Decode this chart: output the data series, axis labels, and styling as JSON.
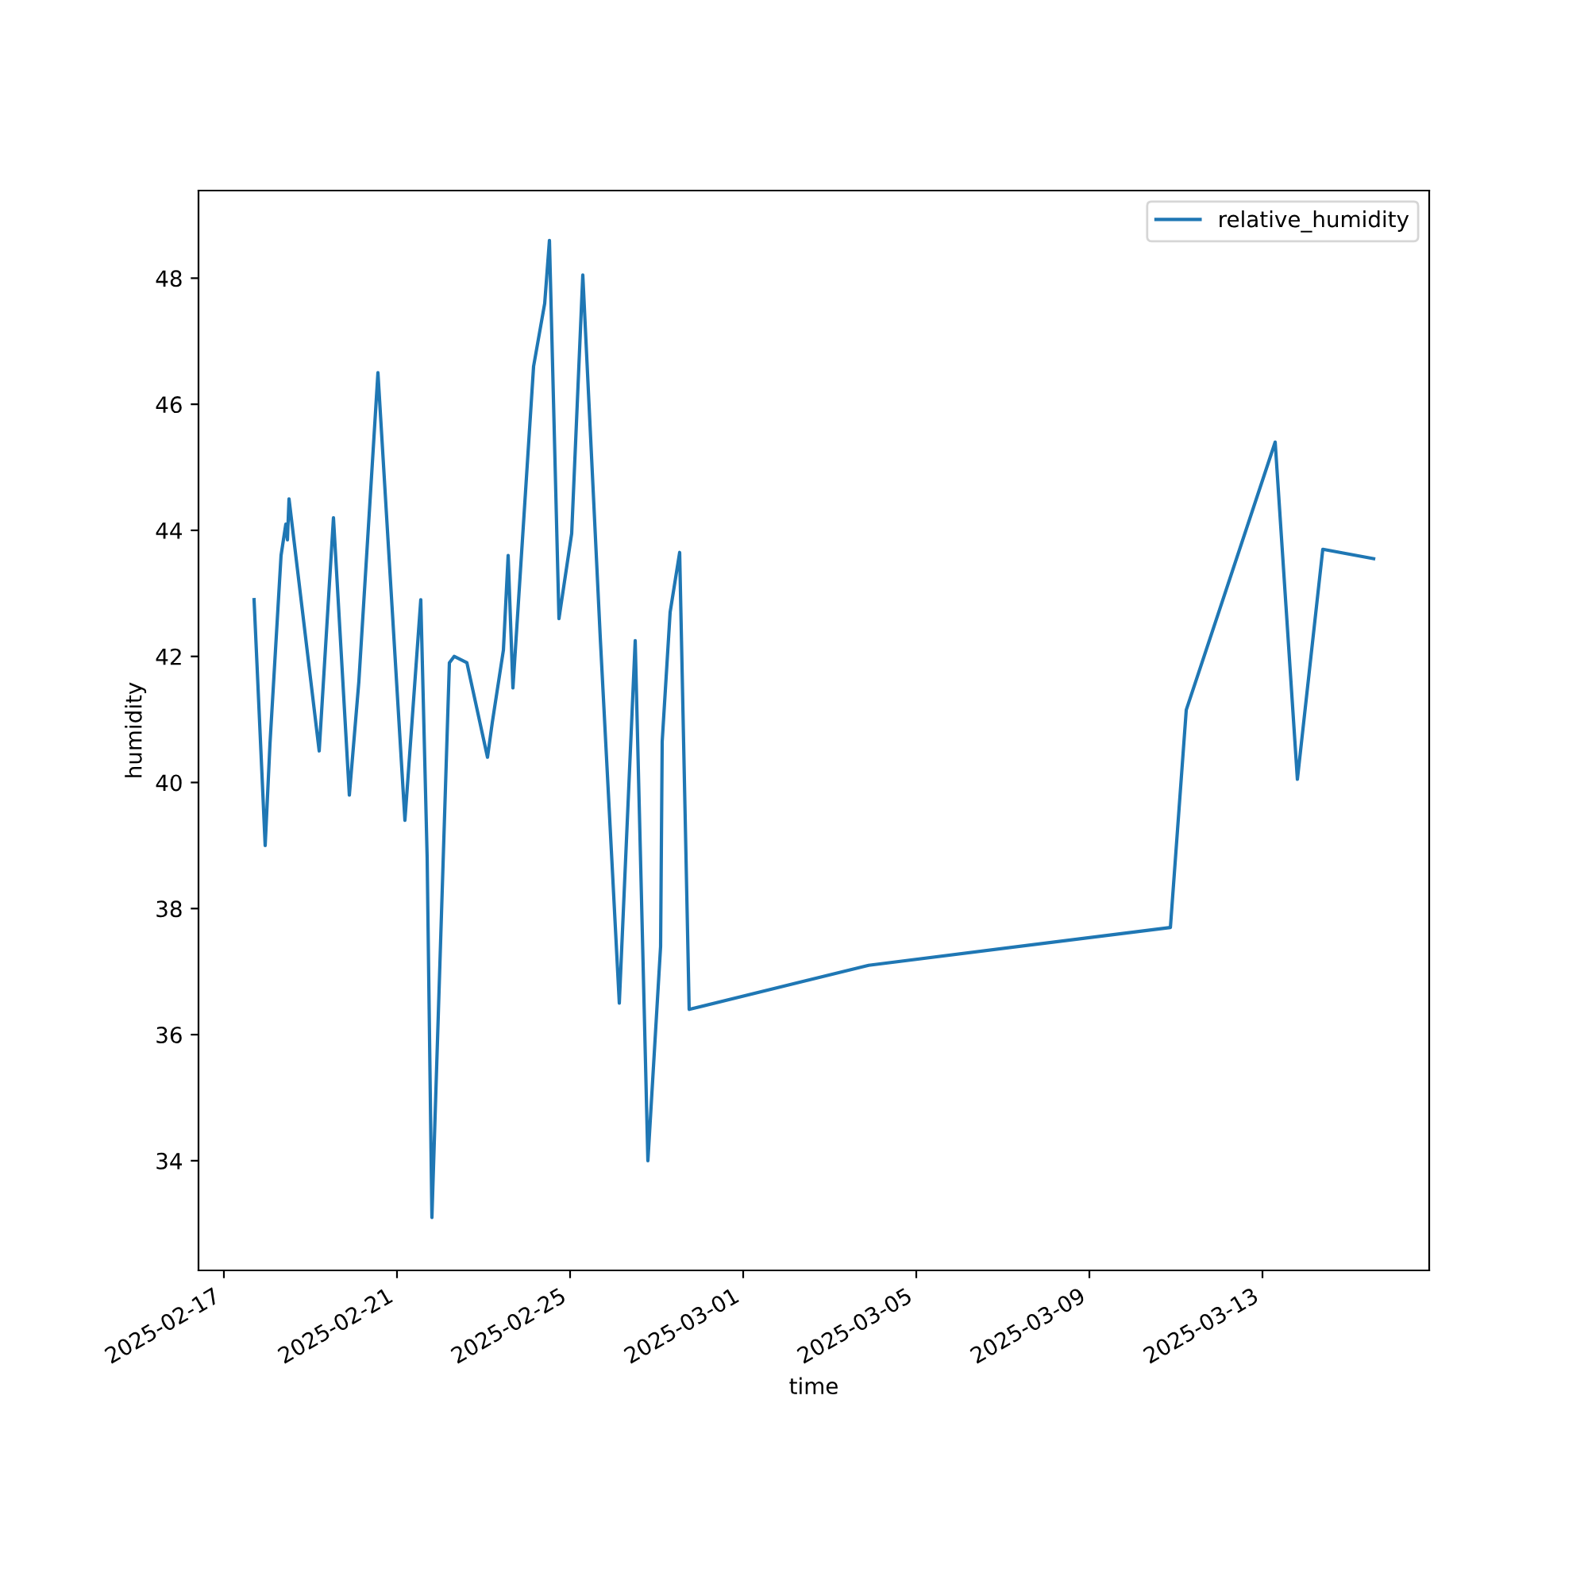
{
  "chart_data": {
    "type": "line",
    "xlabel": "time",
    "ylabel": "humidity",
    "legend": "top right",
    "grid": false,
    "xlim": [
      "2025-02-16T09:55",
      "2025-03-16T20:28"
    ],
    "ylim": [
      32.26,
      49.39
    ],
    "xticks": [
      "2025-02-17",
      "2025-02-21",
      "2025-02-25",
      "2025-03-01",
      "2025-03-05",
      "2025-03-09",
      "2025-03-13"
    ],
    "yticks": [
      34,
      36,
      38,
      40,
      42,
      44,
      46,
      48
    ],
    "series": [
      {
        "name": "relative_humidity",
        "color": "#1f77b4",
        "x": [
          "2025-02-17T16:44",
          "2025-02-17T22:54",
          "2025-02-18T01:32",
          "2025-02-18T07:42",
          "2025-02-18T10:21",
          "2025-02-18T11:14",
          "2025-02-18T12:07",
          "2025-02-19T04:51",
          "2025-02-19T12:46",
          "2025-02-19T21:35",
          "2025-02-20T02:51",
          "2025-02-20T13:26",
          "2025-02-21T04:24",
          "2025-02-21T13:12",
          "2025-02-21T16:44",
          "2025-02-21T19:22",
          "2025-02-22T05:04",
          "2025-02-22T07:42",
          "2025-02-22T14:46",
          "2025-02-23T02:12",
          "2025-02-23T04:51",
          "2025-02-23T11:01",
          "2025-02-23T13:39",
          "2025-02-23T16:18",
          "2025-02-24T03:45",
          "2025-02-24T09:55",
          "2025-02-24T12:33",
          "2025-02-24T17:50",
          "2025-02-25T00:53",
          "2025-02-25T07:03",
          "2025-02-25T16:44",
          "2025-02-26T03:18",
          "2025-02-26T12:07",
          "2025-02-26T19:09",
          "2025-02-27T02:12",
          "2025-02-27T03:05",
          "2025-02-27T07:29",
          "2025-02-27T12:46",
          "2025-02-27T18:03",
          "2025-03-03T21:35",
          "2025-03-10T20:56",
          "2025-03-11T05:44",
          "2025-03-13T07:03",
          "2025-03-13T19:22",
          "2025-03-14T09:27",
          "2025-03-15T13:39"
        ],
        "values": [
          42.9,
          39.0,
          40.6,
          43.6,
          44.1,
          43.85,
          44.5,
          40.5,
          44.2,
          39.8,
          41.6,
          46.5,
          39.4,
          42.9,
          38.8,
          33.1,
          41.9,
          42.0,
          41.9,
          40.4,
          40.95,
          42.1,
          43.6,
          41.5,
          46.6,
          47.6,
          48.6,
          42.6,
          43.95,
          48.05,
          42.3,
          36.5,
          42.25,
          34.0,
          37.4,
          40.65,
          42.7,
          43.65,
          36.4,
          37.1,
          37.7,
          41.15,
          45.4,
          40.05,
          43.7,
          43.55
        ]
      }
    ]
  }
}
